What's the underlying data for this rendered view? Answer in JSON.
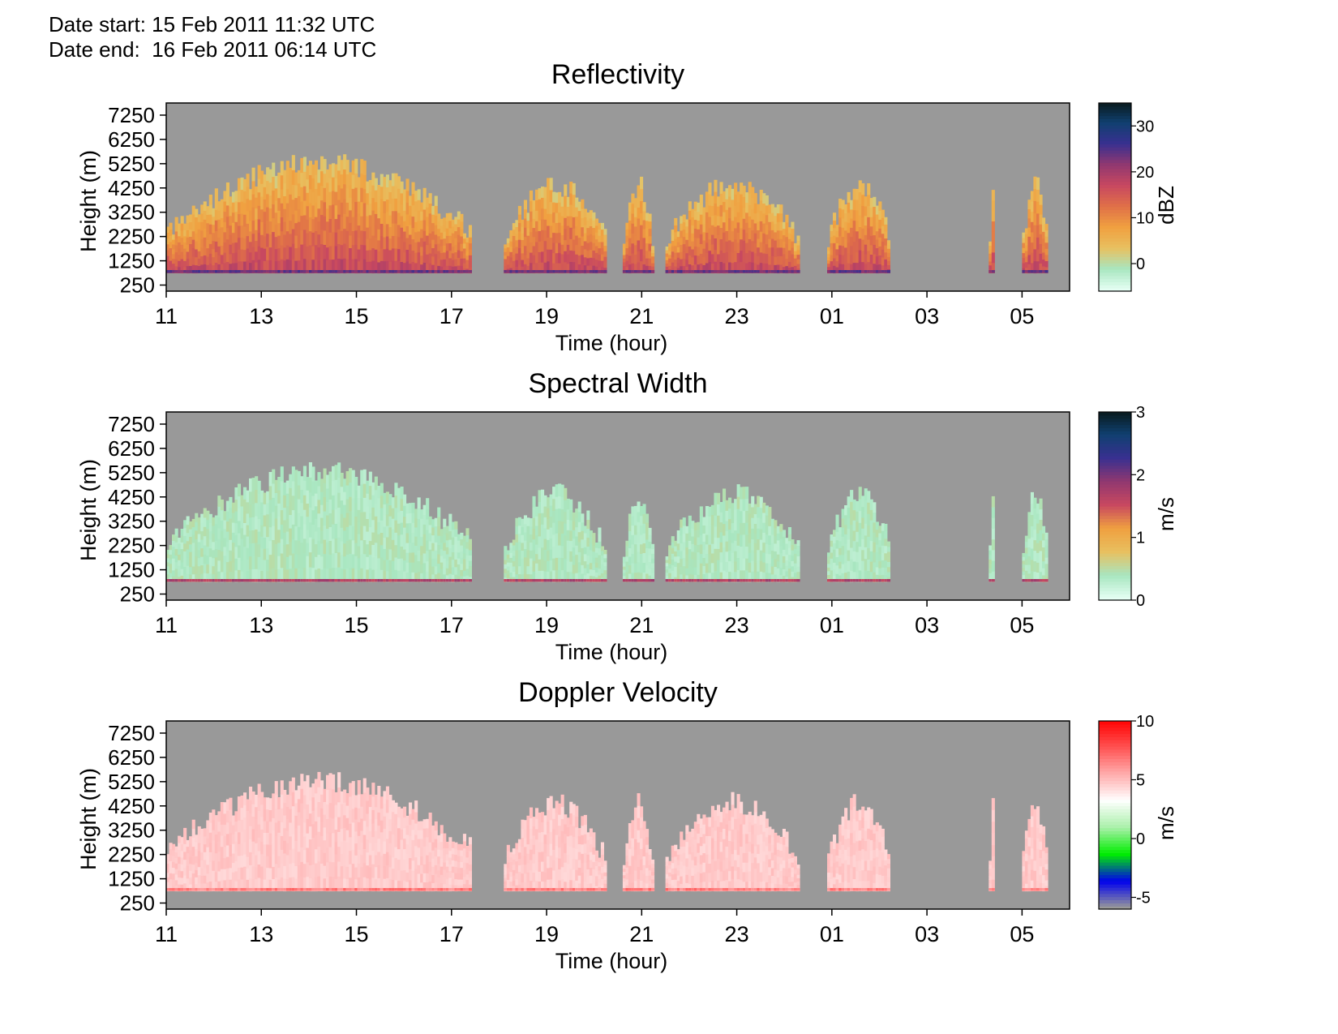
{
  "header": {
    "start_label": "Date start:",
    "start_value": "15 Feb 2011 11:32 UTC",
    "end_label": "Date end:",
    "end_value": "16 Feb 2011 06:14 UTC"
  },
  "colors": {
    "background_nodata": "#999999",
    "reflectivity_colormap": [
      "#e6fff4",
      "#a8e6c0",
      "#e8c060",
      "#f0a040",
      "#e07048",
      "#c84860",
      "#903870",
      "#383090",
      "#104070",
      "#081818"
    ],
    "spectral_width_colormap": [
      "#e6fff4",
      "#a8e6c0",
      "#e8c060",
      "#f0a040",
      "#c84860",
      "#903870",
      "#383090",
      "#104070",
      "#081818"
    ],
    "doppler_colormap": [
      "#999999",
      "#0000ee",
      "#00ee00",
      "#aaf0aa",
      "#ffffff",
      "#ffaaaa",
      "#ff5050",
      "#ff0000"
    ]
  },
  "chart_data": [
    {
      "type": "heatmap",
      "title": "Reflectivity",
      "xlabel": "Time (hour)",
      "ylabel": "Height (m)",
      "x_ticks": [
        "11",
        "13",
        "15",
        "17",
        "19",
        "21",
        "23",
        "01",
        "03",
        "05"
      ],
      "y_ticks": [
        "7250",
        "6250",
        "5250",
        "4250",
        "3250",
        "2250",
        "1250",
        "250"
      ],
      "colorbar": {
        "label": "dBZ",
        "ticks": [
          "30",
          "20",
          "10",
          "0"
        ],
        "range": [
          -6,
          35
        ]
      },
      "grid": false,
      "echo_periods_hours": [
        [
          11.0,
          17.4
        ],
        [
          18.1,
          20.2
        ],
        [
          20.6,
          21.2
        ],
        [
          21.5,
          24.3
        ],
        [
          24.9,
          26.2
        ],
        [
          28.3,
          28.4
        ],
        [
          29.0,
          29.5
        ]
      ],
      "echo_top_max_m": 5800,
      "echo_base_m": 750
    },
    {
      "type": "heatmap",
      "title": "Spectral Width",
      "xlabel": "Time (hour)",
      "ylabel": "Height (m)",
      "x_ticks": [
        "11",
        "13",
        "15",
        "17",
        "19",
        "21",
        "23",
        "01",
        "03",
        "05"
      ],
      "y_ticks": [
        "7250",
        "6250",
        "5250",
        "4250",
        "3250",
        "2250",
        "1250",
        "250"
      ],
      "colorbar": {
        "label": "m/s",
        "ticks": [
          "3",
          "2",
          "1",
          "0"
        ],
        "range": [
          0,
          3
        ]
      },
      "grid": false,
      "echo_periods_hours": [
        [
          11.0,
          17.4
        ],
        [
          18.1,
          20.2
        ],
        [
          20.6,
          21.2
        ],
        [
          21.5,
          24.3
        ],
        [
          24.9,
          26.2
        ],
        [
          28.3,
          28.4
        ],
        [
          29.0,
          29.5
        ]
      ],
      "echo_top_max_m": 5800,
      "echo_base_m": 750
    },
    {
      "type": "heatmap",
      "title": "Doppler Velocity",
      "xlabel": "Time (hour)",
      "ylabel": "Height (m)",
      "x_ticks": [
        "11",
        "13",
        "15",
        "17",
        "19",
        "21",
        "23",
        "01",
        "03",
        "05"
      ],
      "y_ticks": [
        "7250",
        "6250",
        "5250",
        "4250",
        "3250",
        "2250",
        "1250",
        "250"
      ],
      "colorbar": {
        "label": "m/s",
        "ticks": [
          "10",
          "5",
          "0",
          "-5"
        ],
        "range": [
          -6,
          10
        ]
      },
      "grid": false,
      "echo_periods_hours": [
        [
          11.0,
          17.4
        ],
        [
          18.1,
          20.2
        ],
        [
          20.6,
          21.2
        ],
        [
          21.5,
          24.3
        ],
        [
          24.9,
          26.2
        ],
        [
          28.3,
          28.4
        ],
        [
          29.0,
          29.5
        ]
      ],
      "echo_top_max_m": 5800,
      "echo_base_m": 750
    }
  ]
}
